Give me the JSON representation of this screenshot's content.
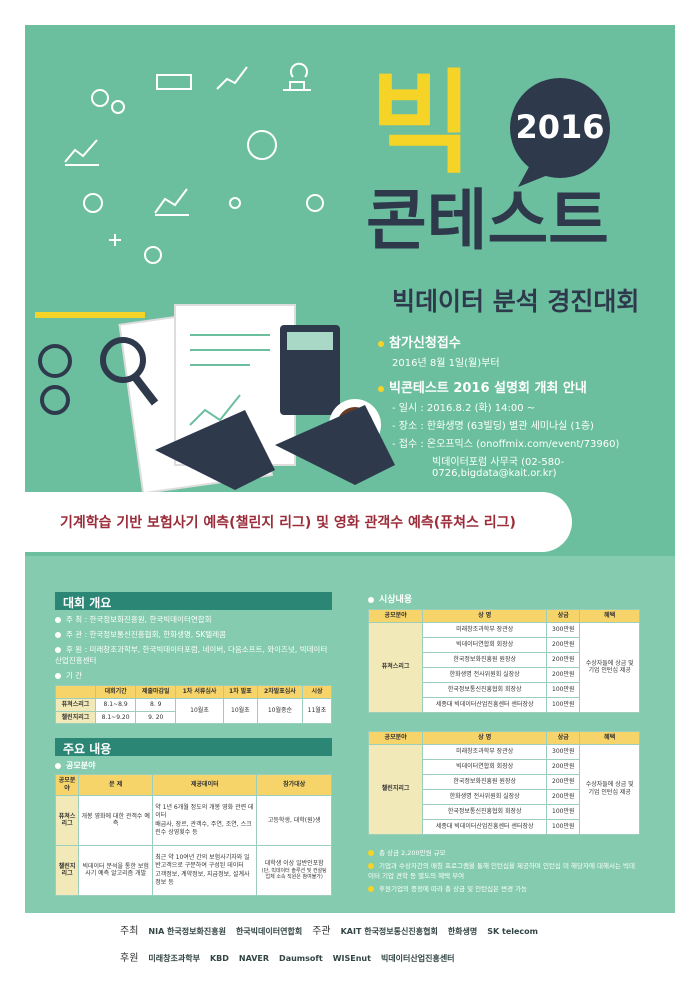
{
  "header": {
    "big": "빅",
    "year": "2016",
    "title": "콘테스트",
    "subtitle": "빅데이터 분석 경진대회"
  },
  "info": [
    {
      "title": "참가신청접수",
      "lines": [
        "2016년 8월 1일(월)부터"
      ]
    },
    {
      "title": "빅콘테스트 2016 설명회 개최 안내",
      "lines": [
        "- 일시 : 2016.8.2 (화) 14:00 ~",
        "- 장소 : 한화생명 (63빌딩) 별관 세미나실 (1층)",
        "- 접수 : 온오프믹스 (onoffmix.com/event/73960)",
        "빅데이터포럼 사무국 (02-580-0726,bigdata@kait.or.kr)"
      ]
    }
  ],
  "banner": "기계학습 기반 보험사기 예측(챌린지 리그) 및 영화 관객수 예측(퓨쳐스 리그)",
  "overview": {
    "title": "대회 개요",
    "items": [
      "주 최 : 한국정보화진흥원, 한국빅데이터연합회",
      "주 관 : 한국정보통신진흥협회, 한화생명, SK텔레콤",
      "후 원 : 미래창조과학부, 한국빅데이터포럼, 네이버, 다음소프트, 와이즈넛, 빅데이터산업진흥센터",
      "기 간"
    ],
    "schedule": {
      "headers": [
        "대회기간",
        "제출마감일",
        "1차 서류심사",
        "1차 발표",
        "2차발표심사",
        "시상"
      ],
      "rows": [
        {
          "league": "퓨쳐스리그",
          "period": "8.1~8.9",
          "deadline": "8. 9"
        },
        {
          "league": "챌린지리그",
          "period": "8.1~9.20",
          "deadline": "9. 20"
        }
      ],
      "shared": [
        "10월초",
        "10월초",
        "10월중순",
        "11월초"
      ]
    }
  },
  "contents": {
    "title": "주요 내용",
    "subtitle": "공모분야",
    "headers": [
      "공모분야",
      "문 제",
      "제공데이터",
      "참가대상"
    ],
    "rows": [
      {
        "league": "퓨쳐스 리그",
        "problem": "개봉 영화에 대한 관객수 예측",
        "data": [
          "약 1년 6개월 정도의 개봉 영화 관련 데이터",
          "배급사, 장르, 관객수, 주연, 조연, 스크린수 상영횟수 등"
        ],
        "target": "고등학생, 대학(원)생"
      },
      {
        "league": "챌린지 리그",
        "problem": "빅데이터 분석을 통한 보험사기 예측 알고리즘 개발",
        "data": [
          "최근 약 10여년 간의 보험사기자와 일반고객으로 구분하여 구성된 데이터",
          "고객정보, 계약정보, 지급정보, 설계사 정보 등"
        ],
        "target": "대학생 이상 일반인포함",
        "note": "(단, 빅데이터 솔루션 및 컨설팅 업체 소속 직원은 참여불가)"
      }
    ]
  },
  "awards": {
    "title": "시상내용",
    "headers": [
      "공모분야",
      "상 명",
      "상금",
      "혜택"
    ],
    "tables": [
      {
        "league": "퓨쳐스리그",
        "benefit": "수상자들에 상금 및 기업 인턴십 제공",
        "rows": [
          [
            "미래창조과학부 장관상",
            "300만원"
          ],
          [
            "빅데이터연합회 회장상",
            "200만원"
          ],
          [
            "한국정보화진흥원 원장상",
            "200만원"
          ],
          [
            "한화생명 전사위원회 실장상",
            "200만원"
          ],
          [
            "한국정보통신진흥협회 회장상",
            "100만원"
          ],
          [
            "세종대 빅데이터산업진흥센터 센터장상",
            "100만원"
          ]
        ]
      },
      {
        "league": "챌린지리그",
        "benefit": "수상자들에 상금 및 기업 인턴십 제공",
        "rows": [
          [
            "미래창조과학부 장관상",
            "300만원"
          ],
          [
            "빅데이터연합회 회장상",
            "200만원"
          ],
          [
            "한국정보화진흥원 원장상",
            "200만원"
          ],
          [
            "한화생명 전사위원회 실장상",
            "200만원"
          ],
          [
            "한국정보통신진흥협회 회장상",
            "100만원"
          ],
          [
            "세종대 빅데이터산업진흥센터 센터장상",
            "100만원"
          ]
        ]
      }
    ],
    "notes": [
      "총 상금 2,200만원 규모",
      "기업과 수상자간의 매칭 프로그램을 통해 인턴십을 제공하며 인턴십 미 해당자에 대해서는 빅데이터 기업 견학 등 별도의 혜택 부여",
      "후원기업의 증정에 따라 총 상금 및 인턴십은 변경 가능"
    ]
  },
  "footer": {
    "host_label": "주최",
    "hosts": [
      "NIA 한국정보화진흥원",
      "한국빅데이터연합회"
    ],
    "organizer_label": "주관",
    "organizers": [
      "KAIT 한국정보통신진흥협회",
      "한화생명",
      "SK telecom"
    ],
    "sponsor_label": "후원",
    "sponsors": [
      "미래창조과학부",
      "KBD",
      "NAVER",
      "Daumsoft",
      "WISEnut",
      "빅데이터산업진흥센터"
    ]
  }
}
